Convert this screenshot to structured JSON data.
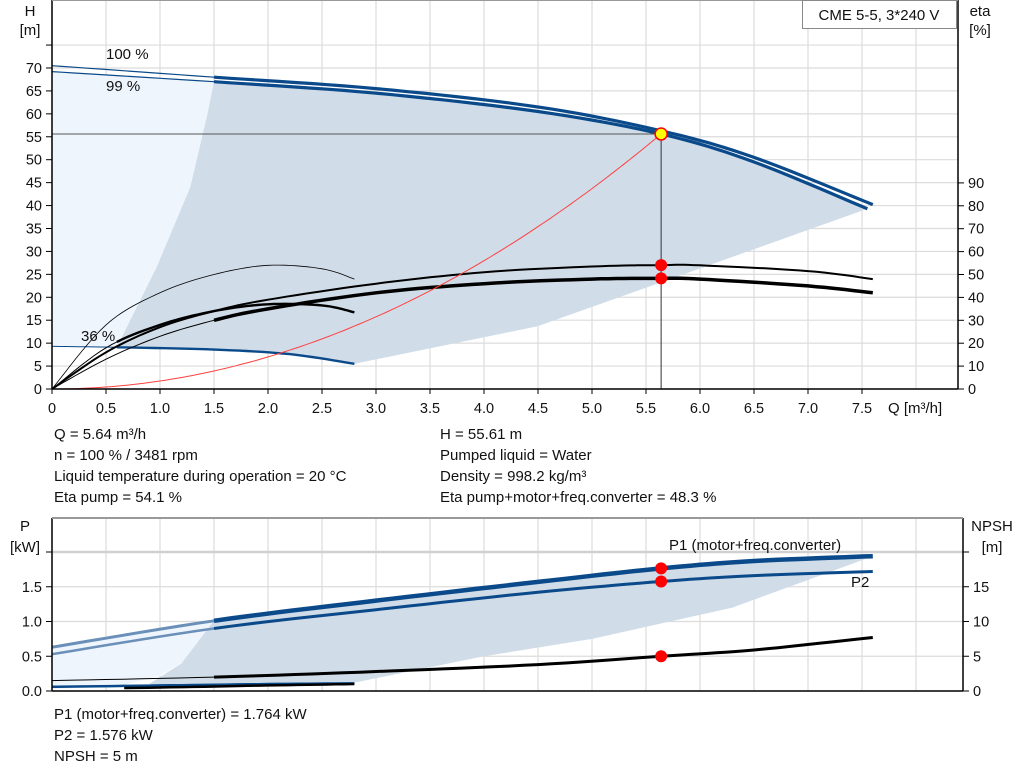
{
  "chart_data": [
    {
      "type": "line",
      "title": "CME 5-5, 3*240 V",
      "xlabel": "Q [m³/h]",
      "ylabel": "H [m]",
      "y2label": "eta [%]",
      "xlim": [
        0,
        8.4
      ],
      "ylim": [
        0,
        75
      ],
      "y2lim": [
        0,
        100
      ],
      "grid": true,
      "x_ticks": [
        "0",
        "0.5",
        "1.0",
        "1.5",
        "2.0",
        "2.5",
        "3.0",
        "3.5",
        "4.0",
        "4.5",
        "5.0",
        "5.5",
        "6.0",
        "6.5",
        "7.0",
        "7.5"
      ],
      "y_ticks": [
        "0",
        "5",
        "10",
        "15",
        "20",
        "25",
        "30",
        "35",
        "40",
        "45",
        "50",
        "55",
        "60",
        "65",
        "70"
      ],
      "y2_ticks": [
        "0",
        "10",
        "20",
        "30",
        "40",
        "50",
        "60",
        "70",
        "80",
        "90"
      ],
      "curve_labels": [
        "100 %",
        "99 %",
        "36 %"
      ],
      "series": [
        {
          "name": "100 %",
          "axis": "H",
          "x": [
            0,
            1.5,
            3,
            4.5,
            5.64,
            6.5,
            7.6
          ],
          "y": [
            70.5,
            68,
            65.5,
            61.5,
            56.3,
            50.5,
            40.2
          ]
        },
        {
          "name": "99 %",
          "axis": "H",
          "x": [
            0,
            1.5,
            3,
            4.5,
            5.64,
            6.5,
            7.55
          ],
          "y": [
            69.2,
            67,
            64.5,
            60.5,
            55.6,
            49.5,
            39.3
          ]
        },
        {
          "name": "36 %",
          "axis": "H",
          "x": [
            0,
            0.6,
            1.5,
            2.2,
            2.8
          ],
          "y": [
            9.3,
            9.1,
            8.6,
            7.6,
            5.5
          ]
        },
        {
          "axis": "eta",
          "x": [
            0,
            0.5,
            1,
            1.5,
            2,
            3,
            4,
            5,
            5.64,
            6,
            7,
            7.6
          ],
          "y": [
            0,
            16,
            27,
            34,
            39,
            46,
            51,
            53.5,
            54.1,
            54,
            51.5,
            48
          ]
        },
        {
          "axis": "eta",
          "x": [
            0,
            0.5,
            1,
            1.5,
            2,
            3,
            4,
            5,
            5.64,
            6,
            7,
            7.6
          ],
          "y": [
            0,
            13,
            23,
            30,
            35,
            42,
            46,
            48,
            48.3,
            48,
            45,
            42
          ]
        },
        {
          "axis": "eta",
          "x": [
            0,
            0.5,
            1,
            1.5,
            2,
            2.5,
            2.8
          ],
          "y": [
            0,
            28,
            42,
            50,
            54,
            52.5,
            48
          ]
        },
        {
          "axis": "eta",
          "x": [
            0,
            0.5,
            1,
            1.5,
            2,
            2.5,
            2.8
          ],
          "y": [
            0,
            18,
            28,
            34,
            37,
            36.5,
            33.5
          ]
        },
        {
          "axis": "H",
          "type": "system-curve",
          "x": [
            0,
            1,
            2,
            3,
            4,
            5,
            5.64
          ],
          "y": [
            0,
            1.75,
            7,
            15.7,
            28,
            43.7,
            55.61
          ]
        }
      ],
      "operating_point": {
        "Q": 5.64,
        "H": 55.61,
        "eta_pump": 54.1,
        "eta_total": 48.3
      },
      "colors": {
        "pump_curve": "#0b4a8a",
        "area_dark": "#d0dce8",
        "area_light": "#eef5fd",
        "system_curve": "#ff4040",
        "point": "#ff0000",
        "duty_point_fill": "#ffff00"
      }
    },
    {
      "type": "line",
      "ylabel": "P [kW]",
      "y2label": "NPSH [m]",
      "xlim": [
        0,
        8.4
      ],
      "ylim": [
        0,
        2.1
      ],
      "y2lim": [
        0,
        21
      ],
      "grid": true,
      "y_ticks": [
        "0.0",
        "0.5",
        "1.0",
        "1.5"
      ],
      "y2_ticks": [
        "0",
        "5",
        "10",
        "15"
      ],
      "series": [
        {
          "name": "P1 (motor+freq.converter)",
          "axis": "P",
          "x": [
            0,
            1.5,
            3,
            4.5,
            5.64,
            6.5,
            7.6
          ],
          "y": [
            0.63,
            1.01,
            1.3,
            1.57,
            1.764,
            1.87,
            1.94
          ]
        },
        {
          "name": "P2",
          "axis": "P",
          "x": [
            0,
            1.5,
            3,
            4.5,
            5.64,
            6.5,
            7.6
          ],
          "y": [
            0.53,
            0.9,
            1.17,
            1.42,
            1.576,
            1.66,
            1.72
          ]
        },
        {
          "axis": "NPSH",
          "x": [
            0,
            1.5,
            3,
            4.5,
            5.64,
            6.5,
            7.6
          ],
          "y": [
            1.5,
            2,
            2.8,
            3.8,
            5,
            5.9,
            7.7
          ]
        },
        {
          "axis": "P",
          "x": [
            0,
            1,
            2,
            2.8
          ],
          "y": [
            0.06,
            0.08,
            0.1,
            0.11
          ]
        },
        {
          "axis": "P",
          "x": [
            0,
            1,
            2,
            2.8
          ],
          "y": [
            0.03,
            0.05,
            0.08,
            0.1
          ]
        }
      ],
      "operating_point": {
        "Q": 5.64,
        "P1": 1.764,
        "P2": 1.576,
        "NPSH": 5
      }
    }
  ],
  "info": {
    "q": "Q = 5.64 m³/h",
    "n": "n = 100 % / 3481 rpm",
    "temp": "Liquid temperature during operation = 20 °C",
    "eta_pump": "Eta pump = 54.1 %",
    "h": "H = 55.61 m",
    "liquid": "Pumped liquid = Water",
    "density": "Density = 998.2 kg/m³",
    "eta_total": "Eta pump+motor+freq.converter = 48.3 %",
    "p1": "P1 (motor+freq.converter) = 1.764 kW",
    "p2": "P2 = 1.576 kW",
    "npsh": "NPSH = 5 m"
  }
}
